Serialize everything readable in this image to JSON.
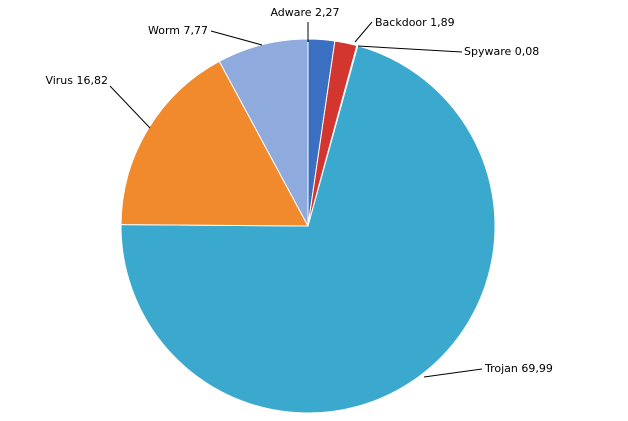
{
  "chart_data": {
    "type": "pie",
    "title": "",
    "start_angle": "12 o'clock, clockwise",
    "legend": "none (data labels with leader lines)",
    "slices": [
      {
        "label": "Adware",
        "value": 2.27,
        "text": "Adware 2,27",
        "color": "#3a6fc2"
      },
      {
        "label": "Backdoor",
        "value": 1.89,
        "text": "Backdoor  1,89",
        "color": "#d2362f"
      },
      {
        "label": "Spyware",
        "value": 0.08,
        "text": "Spyware 0,08",
        "color": "#7fbf3f"
      },
      {
        "label": "Trojan",
        "value": 69.99,
        "text": "Trojan 69,99",
        "color": "#3aa9cd"
      },
      {
        "label": "Virus",
        "value": 16.82,
        "text": "Virus 16,82",
        "color": "#f08a2c"
      },
      {
        "label": "Worm",
        "value": 7.77,
        "text": "Worm 7,77",
        "color": "#8faadc"
      }
    ]
  }
}
